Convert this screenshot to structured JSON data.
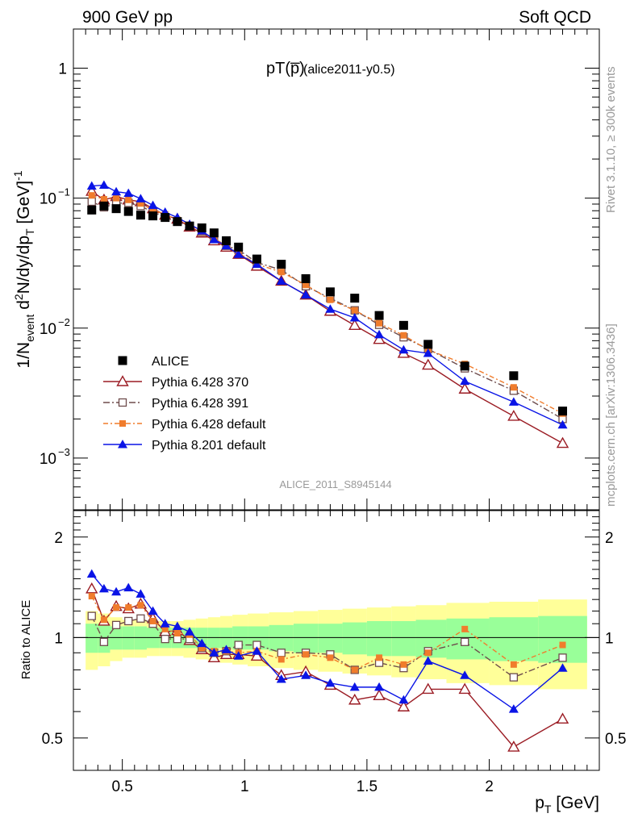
{
  "header": {
    "left": "900 GeV pp",
    "right": "Soft QCD",
    "rivet_side": "Rivet 3.1.10, ≥ 300k events",
    "mcplots_side": "mcplots.cern.ch [arXiv:1306.3436]",
    "plot_label_main": "pT(p̅)",
    "plot_label_suffix": "(alice2011-y0.5)",
    "analysis_id": "ALICE_2011_S8945144"
  },
  "axes": {
    "y_top_label": "1/N_event d²N/dy/dp_T [GeV]⁻¹",
    "y_bottom_label": "Ratio to ALICE",
    "x_label": "p_T [GeV]",
    "x_ticks": [
      "0.5",
      "1",
      "1.5",
      "2"
    ],
    "y_top_ticks": [
      "1",
      "10^-1",
      "10^-2",
      "10^-3"
    ],
    "y_bottom_ticks": [
      "2",
      "1",
      "0.5"
    ]
  },
  "legend": [
    {
      "label": "ALICE",
      "color": "#000000",
      "marker": "square-filled"
    },
    {
      "label": "Pythia 6.428 370",
      "color": "#9b1c24",
      "marker": "triangle-open"
    },
    {
      "label": "Pythia 6.428 391",
      "color": "#6e4c4c",
      "marker": "square-open"
    },
    {
      "label": "Pythia 6.428 default",
      "color": "#f07c2c",
      "marker": "square-filled-small"
    },
    {
      "label": "Pythia 8.201 default",
      "color": "#0a14e6",
      "marker": "triangle-filled"
    }
  ],
  "chart_data": {
    "type": "scatter",
    "title": "pT(p̅) (alice2011-y0.5)",
    "xlabel": "p_T [GeV]",
    "ylabel": "1/N_event d²N/dy/dp_T [GeV]⁻¹",
    "ratio_ylabel": "Ratio to ALICE",
    "xlim": [
      0.3,
      2.45
    ],
    "ylim": [
      0.0004,
      2.0
    ],
    "yscale": "log",
    "ratio_ylim": [
      0.4,
      2.4
    ],
    "ratio_yscale": "log",
    "x": [
      0.375,
      0.425,
      0.475,
      0.525,
      0.575,
      0.625,
      0.675,
      0.725,
      0.775,
      0.825,
      0.875,
      0.925,
      0.975,
      1.05,
      1.15,
      1.25,
      1.35,
      1.45,
      1.55,
      1.65,
      1.75,
      1.9,
      2.1,
      2.3
    ],
    "series": [
      {
        "name": "ALICE",
        "color": "#000000",
        "values": [
          0.081,
          0.087,
          0.083,
          0.079,
          0.074,
          0.073,
          0.071,
          0.066,
          0.061,
          0.059,
          0.054,
          0.047,
          0.042,
          0.034,
          0.031,
          0.024,
          0.019,
          0.017,
          0.0125,
          0.0105,
          0.0075,
          0.0051,
          0.0043,
          0.0023
        ]
      },
      {
        "name": "Pythia 6.428 370",
        "color": "#9b1c24",
        "values": [
          0.113,
          0.097,
          0.103,
          0.097,
          0.094,
          0.083,
          0.074,
          0.069,
          0.06,
          0.054,
          0.047,
          0.042,
          0.037,
          0.03,
          0.023,
          0.018,
          0.0135,
          0.0105,
          0.0082,
          0.0064,
          0.0052,
          0.0034,
          0.0021,
          0.0013
        ]
      },
      {
        "name": "Pythia 6.428 391",
        "color": "#6e4c4c",
        "values": [
          0.094,
          0.085,
          0.091,
          0.092,
          0.087,
          0.078,
          0.071,
          0.066,
          0.061,
          0.055,
          0.049,
          0.043,
          0.04,
          0.032,
          0.028,
          0.021,
          0.017,
          0.0137,
          0.0106,
          0.0085,
          0.0069,
          0.0049,
          0.0033,
          0.002
        ]
      },
      {
        "name": "Pythia 6.428 default",
        "color": "#f07c2c",
        "values": [
          0.105,
          0.098,
          0.1,
          0.097,
          0.091,
          0.081,
          0.075,
          0.068,
          0.062,
          0.055,
          0.049,
          0.043,
          0.038,
          0.031,
          0.027,
          0.0215,
          0.0165,
          0.0137,
          0.0109,
          0.0088,
          0.0068,
          0.0053,
          0.0035,
          0.0022
        ]
      },
      {
        "name": "Pythia 8.201 default",
        "color": "#0a14e6",
        "values": [
          0.124,
          0.126,
          0.112,
          0.109,
          0.099,
          0.088,
          0.078,
          0.071,
          0.063,
          0.056,
          0.048,
          0.043,
          0.037,
          0.031,
          0.023,
          0.018,
          0.014,
          0.012,
          0.0089,
          0.0068,
          0.0064,
          0.0039,
          0.0027,
          0.0018
        ]
      }
    ],
    "ratio_series": [
      {
        "name": "Pythia 6.428 370",
        "color": "#9b1c24",
        "values": [
          1.4,
          1.12,
          1.24,
          1.22,
          1.26,
          1.14,
          1.04,
          1.05,
          0.98,
          0.92,
          0.87,
          0.89,
          0.89,
          0.88,
          0.77,
          0.79,
          0.72,
          0.65,
          0.67,
          0.62,
          0.7,
          0.7,
          0.47,
          0.57
        ]
      },
      {
        "name": "Pythia 6.428 391",
        "color": "#6e4c4c",
        "values": [
          1.16,
          0.97,
          1.09,
          1.12,
          1.14,
          1.1,
          0.99,
          0.99,
          0.99,
          0.93,
          0.9,
          0.91,
          0.95,
          0.95,
          0.9,
          0.9,
          0.89,
          0.8,
          0.84,
          0.81,
          0.91,
          0.97,
          0.76,
          0.87
        ]
      },
      {
        "name": "Pythia 6.428 default",
        "color": "#f07c2c",
        "values": [
          1.33,
          1.13,
          1.23,
          1.23,
          1.25,
          1.12,
          1.06,
          1.03,
          1.02,
          0.93,
          0.91,
          0.91,
          0.9,
          0.91,
          0.86,
          0.89,
          0.87,
          0.8,
          0.87,
          0.83,
          0.9,
          1.06,
          0.83,
          0.95
        ]
      },
      {
        "name": "Pythia 8.201 default",
        "color": "#0a14e6",
        "values": [
          1.55,
          1.4,
          1.37,
          1.41,
          1.35,
          1.2,
          1.1,
          1.08,
          1.04,
          0.96,
          0.9,
          0.92,
          0.88,
          0.91,
          0.75,
          0.77,
          0.73,
          0.71,
          0.71,
          0.65,
          0.85,
          0.77,
          0.61,
          0.81
        ]
      }
    ],
    "ratio_uncertainty": {
      "inner": [
        0.1,
        0.1,
        0.08,
        0.08,
        0.08,
        0.07,
        0.07,
        0.07,
        0.07,
        0.07,
        0.07,
        0.07,
        0.08,
        0.08,
        0.09,
        0.1,
        0.1,
        0.11,
        0.12,
        0.12,
        0.13,
        0.14,
        0.15,
        0.16
      ],
      "outer": [
        0.2,
        0.18,
        0.15,
        0.13,
        0.13,
        0.12,
        0.12,
        0.12,
        0.13,
        0.14,
        0.15,
        0.16,
        0.17,
        0.18,
        0.19,
        0.2,
        0.21,
        0.22,
        0.23,
        0.24,
        0.25,
        0.27,
        0.28,
        0.3
      ]
    }
  }
}
